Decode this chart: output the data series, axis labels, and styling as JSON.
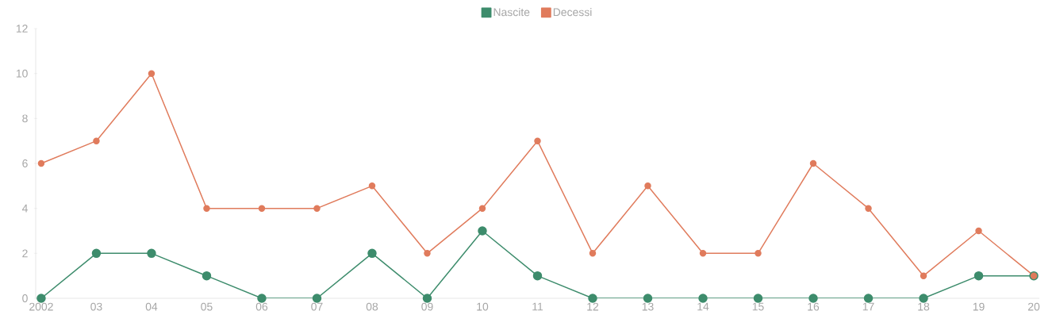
{
  "chart_data": {
    "type": "line",
    "categories": [
      "2002",
      "03",
      "04",
      "05",
      "06",
      "07",
      "08",
      "09",
      "10",
      "11",
      "12",
      "13",
      "14",
      "15",
      "16",
      "17",
      "18",
      "19",
      "20"
    ],
    "series": [
      {
        "name": "Nascite",
        "color": "#3d8c6c",
        "values": [
          0,
          2,
          2,
          1,
          0,
          0,
          2,
          0,
          3,
          1,
          0,
          0,
          0,
          0,
          0,
          0,
          0,
          1,
          1
        ]
      },
      {
        "name": "Decessi",
        "color": "#e07b5c",
        "values": [
          6,
          7,
          10,
          4,
          4,
          4,
          5,
          2,
          4,
          7,
          2,
          5,
          2,
          2,
          6,
          4,
          1,
          3,
          1
        ]
      }
    ],
    "ylim": [
      0,
      12
    ],
    "yticks": [
      0,
      2,
      4,
      6,
      8,
      10,
      12
    ],
    "grid": false,
    "legend": "top",
    "marker": "circle",
    "line_style": "solid"
  }
}
